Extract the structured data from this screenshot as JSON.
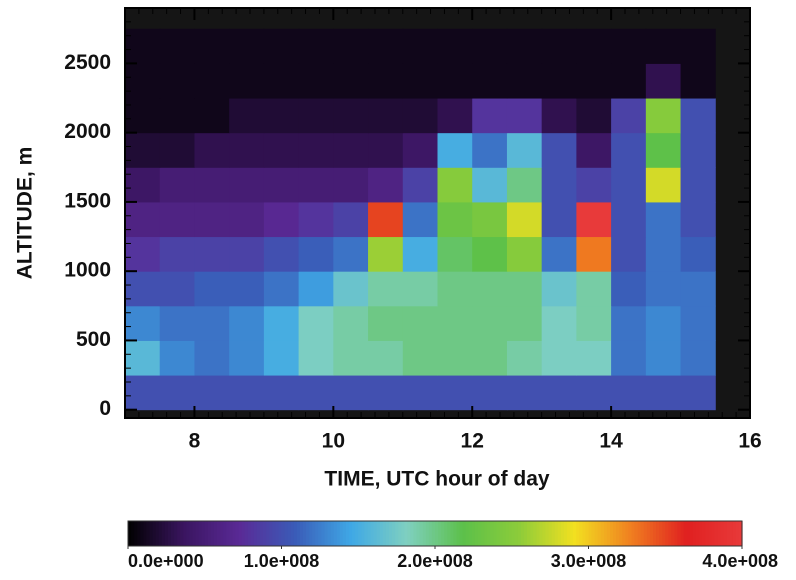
{
  "chart_data": {
    "type": "heatmap",
    "xlabel": "TIME, UTC hour of day",
    "ylabel": "ALTITUDE, m",
    "xlim": [
      7,
      16
    ],
    "xticks": [
      8,
      10,
      12,
      14,
      16
    ],
    "ylim": [
      -60,
      2900
    ],
    "yticks": [
      0,
      500,
      1000,
      1500,
      2000,
      2500
    ],
    "xbins": [
      7.0,
      7.5,
      8.0,
      8.5,
      9.0,
      9.5,
      10.0,
      10.5,
      11.0,
      11.5,
      12.0,
      12.5,
      13.0,
      13.5,
      14.0,
      14.5,
      15.0,
      15.5
    ],
    "ybins": [
      0,
      250,
      500,
      750,
      1000,
      1250,
      1500,
      1750,
      2000,
      2250,
      2500,
      2750
    ],
    "z": [
      [
        100000000.0,
        100000000.0,
        100000000.0,
        100000000.0,
        100000000.0,
        100000000.0,
        100000000.0,
        100000000.0,
        100000000.0,
        100000000.0,
        100000000.0,
        100000000.0,
        100000000.0,
        100000000.0,
        100000000.0,
        100000000.0,
        100000000.0
      ],
      [
        160000000.0,
        130000000.0,
        120000000.0,
        130000000.0,
        150000000.0,
        180000000.0,
        190000000.0,
        190000000.0,
        200000000.0,
        200000000.0,
        200000000.0,
        190000000.0,
        180000000.0,
        180000000.0,
        120000000.0,
        130000000.0,
        120000000.0
      ],
      [
        130000000.0,
        120000000.0,
        120000000.0,
        130000000.0,
        150000000.0,
        180000000.0,
        190000000.0,
        200000000.0,
        200000000.0,
        200000000.0,
        200000000.0,
        200000000.0,
        180000000.0,
        190000000.0,
        120000000.0,
        130000000.0,
        120000000.0
      ],
      [
        100000000.0,
        100000000.0,
        110000000.0,
        110000000.0,
        120000000.0,
        140000000.0,
        170000000.0,
        190000000.0,
        190000000.0,
        200000000.0,
        200000000.0,
        200000000.0,
        170000000.0,
        190000000.0,
        110000000.0,
        120000000.0,
        120000000.0
      ],
      [
        80000000.0,
        90000000.0,
        90000000.0,
        90000000.0,
        100000000.0,
        110000000.0,
        120000000.0,
        260000000.0,
        150000000.0,
        210000000.0,
        220000000.0,
        250000000.0,
        120000000.0,
        330000000.0,
        100000000.0,
        120000000.0,
        110000000.0
      ],
      [
        60000000.0,
        60000000.0,
        60000000.0,
        60000000.0,
        70000000.0,
        80000000.0,
        90000000.0,
        350000000.0,
        120000000.0,
        230000000.0,
        240000000.0,
        280000000.0,
        100000000.0,
        400000000.0,
        100000000.0,
        120000000.0,
        100000000.0
      ],
      [
        40000000.0,
        50000000.0,
        50000000.0,
        50000000.0,
        50000000.0,
        50000000.0,
        50000000.0,
        60000000.0,
        90000000.0,
        250000000.0,
        160000000.0,
        200000000.0,
        100000000.0,
        90000000.0,
        100000000.0,
        280000000.0,
        100000000.0
      ],
      [
        20000000.0,
        20000000.0,
        30000000.0,
        30000000.0,
        30000000.0,
        30000000.0,
        30000000.0,
        30000000.0,
        40000000.0,
        150000000.0,
        120000000.0,
        160000000.0,
        100000000.0,
        40000000.0,
        100000000.0,
        220000000.0,
        100000000.0
      ],
      [
        10000000.0,
        10000000.0,
        10000000.0,
        20000000.0,
        20000000.0,
        20000000.0,
        20000000.0,
        20000000.0,
        20000000.0,
        30000000.0,
        80000000.0,
        80000000.0,
        30000000.0,
        20000000.0,
        90000000.0,
        250000000.0,
        100000000.0
      ],
      [
        10000000.0,
        10000000.0,
        10000000.0,
        10000000.0,
        10000000.0,
        10000000.0,
        10000000.0,
        10000000.0,
        10000000.0,
        10000000.0,
        10000000.0,
        10000000.0,
        10000000.0,
        10000000.0,
        10000000.0,
        30000000.0,
        10000000.0
      ],
      [
        10000000.0,
        10000000.0,
        10000000.0,
        10000000.0,
        10000000.0,
        10000000.0,
        10000000.0,
        10000000.0,
        10000000.0,
        10000000.0,
        10000000.0,
        10000000.0,
        10000000.0,
        10000000.0,
        10000000.0,
        10000000.0,
        10000000.0
      ]
    ],
    "clim": [
      0,
      400000000.0
    ],
    "cticks": [
      {
        "value": 0,
        "label": "0.0e+000"
      },
      {
        "value": 100000000.0,
        "label": "1.0e+008"
      },
      {
        "value": 200000000.0,
        "label": "2.0e+008"
      },
      {
        "value": 300000000.0,
        "label": "3.0e+008"
      },
      {
        "value": 400000000.0,
        "label": "4.0e+008"
      }
    ],
    "colormap": [
      "#000000",
      "#3a1560",
      "#5a2a96",
      "#3a5cb8",
      "#3fa8e6",
      "#7fd0c0",
      "#5cc04a",
      "#8ccc3a",
      "#f2e020",
      "#f08020",
      "#e02020",
      "#e83a3a"
    ]
  }
}
